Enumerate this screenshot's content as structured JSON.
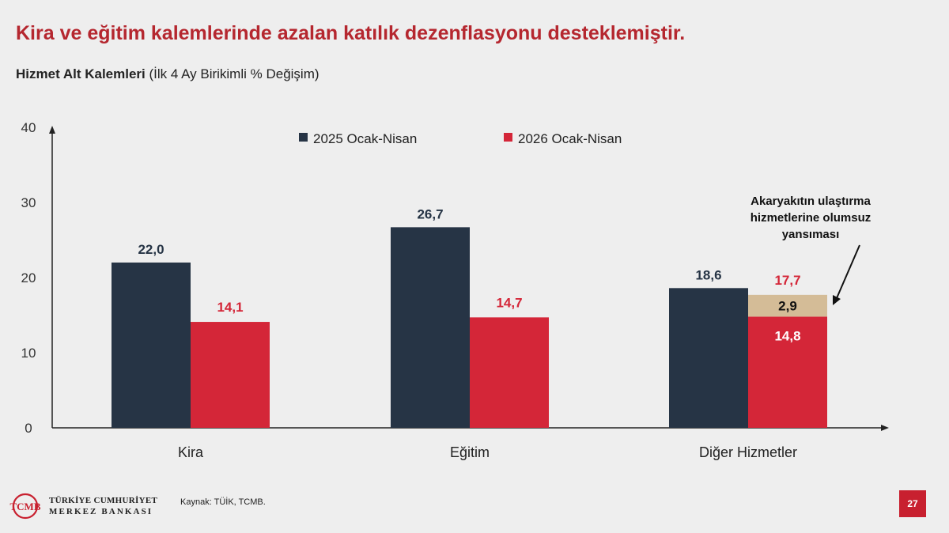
{
  "header": {
    "title": "Kira ve eğitim kalemlerinde azalan katılık dezenflasyonu desteklemiştir.",
    "subtitle_bold": "Hizmet Alt Kalemleri",
    "subtitle_rest": " (İlk 4 Ay Birikimli % Değişim)"
  },
  "footer": {
    "logo_line1": "TÜRKİYE CUMHURİYET",
    "logo_line2": "MERKEZ BANKASI",
    "logo_monogram": "TCMB",
    "source": "Kaynak: TÜİK, TCMB.",
    "page_number": "27"
  },
  "colors": {
    "series_2025": "#263445",
    "series_2026": "#d42638",
    "fuel_segment": "#d4bc97",
    "title": "#b5272f"
  },
  "chart_data": {
    "type": "bar",
    "categories": [
      "Kira",
      "Eğitim",
      "Diğer Hizmetler"
    ],
    "series": [
      {
        "name": "2025 Ocak-Nisan",
        "values": [
          22.0,
          26.7,
          18.6
        ],
        "labels": [
          "22,0",
          "26,7",
          "18,6"
        ]
      },
      {
        "name": "2026 Ocak-Nisan",
        "values": [
          14.1,
          14.7,
          17.7
        ],
        "labels": [
          "14,1",
          "14,7",
          "17,7"
        ]
      }
    ],
    "stack_breakdown": {
      "category": "Diğer Hizmetler",
      "series": "2026 Ocak-Nisan",
      "segments": [
        {
          "value": 14.8,
          "label": "14,8"
        },
        {
          "value": 2.9,
          "label": "2,9"
        }
      ]
    },
    "annotation": {
      "lines": [
        "Akaryakıtın ulaştırma",
        "hizmetlerine olumsuz",
        "yansıması"
      ]
    },
    "yticks": [
      0,
      10,
      20,
      30,
      40
    ],
    "ylim": [
      0,
      40
    ],
    "grid": false,
    "legend_position": "top-center"
  }
}
